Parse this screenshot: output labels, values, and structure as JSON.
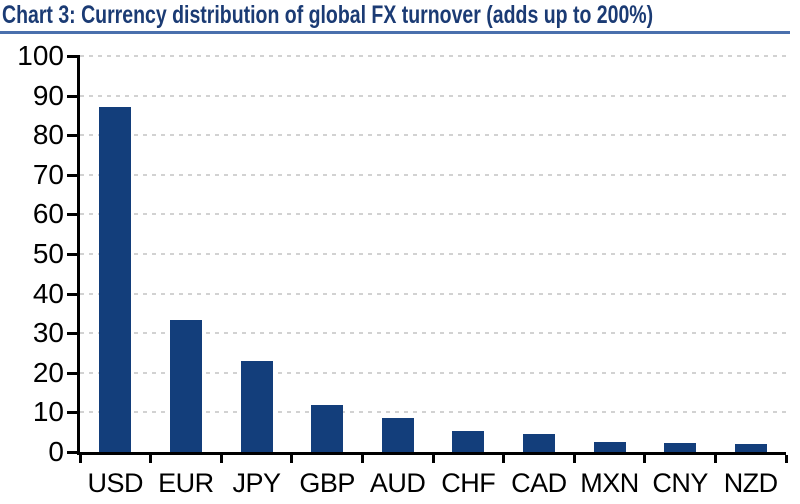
{
  "header": {
    "title": "Chart 3: Currency distribution of global FX turnover (adds up to 200%)"
  },
  "colors": {
    "bar": "#133e7b",
    "title_text": "#1b3b74",
    "title_underline": "#4a70ad",
    "gridline": "#d2d2d2",
    "axis": "#000000",
    "background": "#ffffff"
  },
  "chart_data": {
    "type": "bar",
    "title": "Chart 3: Currency distribution of global FX turnover (adds up to 200%)",
    "categories": [
      "USD",
      "EUR",
      "JPY",
      "GBP",
      "AUD",
      "CHF",
      "CAD",
      "MXN",
      "CNY",
      "NZD"
    ],
    "values": [
      87.0,
      33.4,
      23.0,
      11.8,
      8.6,
      5.2,
      4.6,
      2.5,
      2.2,
      2.0
    ],
    "xlabel": "",
    "ylabel": "",
    "ylim": [
      0,
      100
    ],
    "yticks": [
      0,
      10,
      20,
      30,
      40,
      50,
      60,
      70,
      80,
      90,
      100
    ],
    "grid": "horizontal-dashed",
    "legend": "none"
  }
}
